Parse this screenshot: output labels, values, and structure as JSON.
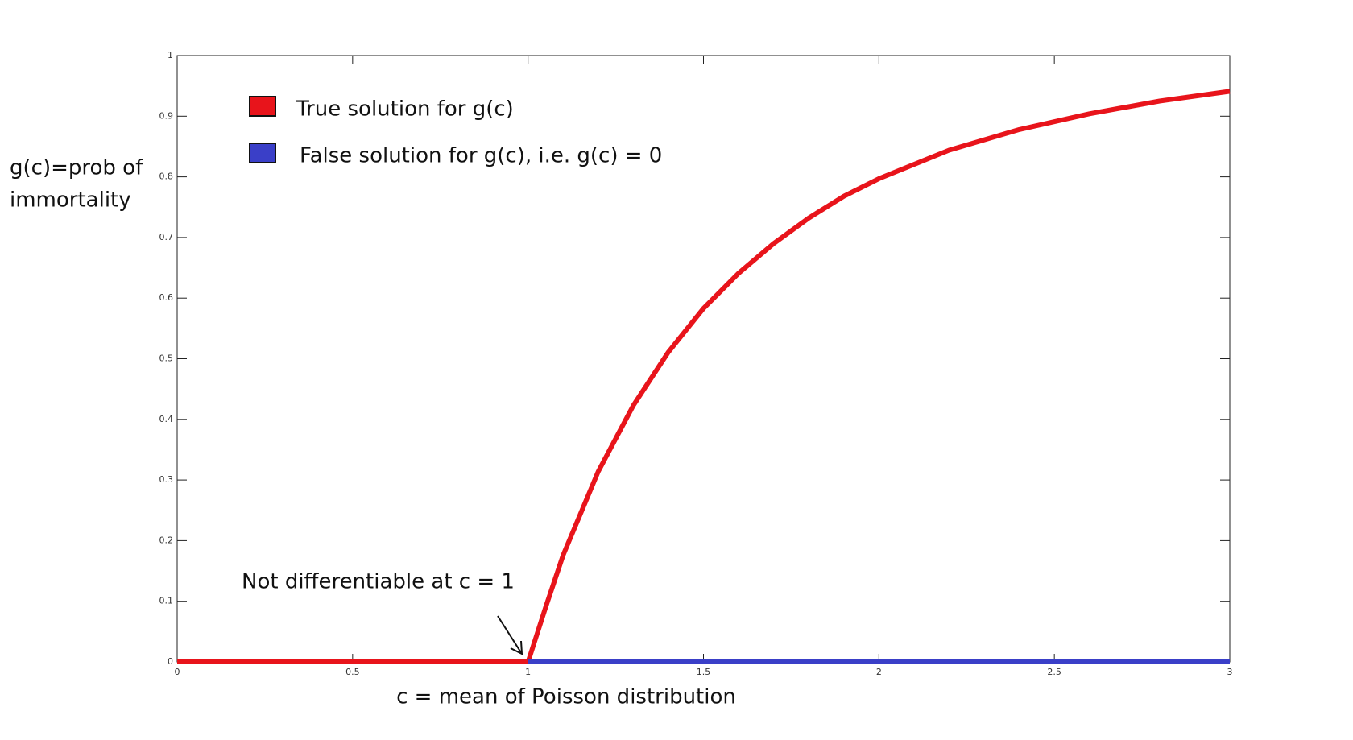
{
  "chart_data": {
    "type": "line",
    "y_label": [
      "g(c)=prob of",
      "immortality"
    ],
    "x_label": "c = mean of Poisson distribution",
    "annotation": "Not differentiable at c = 1",
    "xlim": [
      0,
      3
    ],
    "ylim": [
      0,
      1
    ],
    "xticks": [
      0,
      0.5,
      1,
      1.5,
      2,
      2.5,
      3
    ],
    "yticks": [
      0,
      0.1,
      0.2,
      0.3,
      0.4,
      0.5,
      0.6,
      0.7,
      0.8,
      0.9,
      1
    ],
    "legend": "upper left",
    "series": [
      {
        "name": "True solution for g(c)",
        "color": "#e8141b",
        "x": [
          0,
          0.5,
          1,
          1.05,
          1.1,
          1.2,
          1.3,
          1.4,
          1.5,
          1.6,
          1.7,
          1.8,
          1.9,
          2,
          2.2,
          2.4,
          2.6,
          2.8,
          3
        ],
        "values": [
          0,
          0,
          0,
          0.09,
          0.176,
          0.314,
          0.423,
          0.511,
          0.583,
          0.641,
          0.69,
          0.732,
          0.768,
          0.797,
          0.844,
          0.878,
          0.904,
          0.925,
          0.941
        ]
      },
      {
        "name": "False solution for g(c), i.e. g(c) = 0",
        "color": "#3a3fc8",
        "x": [
          1,
          3
        ],
        "values": [
          0,
          0
        ]
      }
    ]
  }
}
